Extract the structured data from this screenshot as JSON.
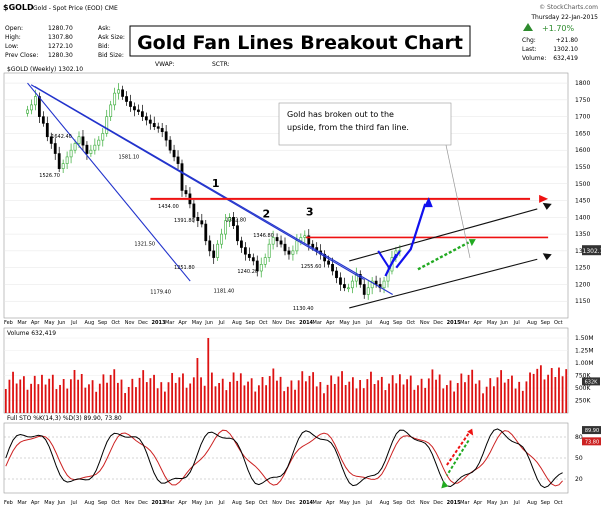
{
  "header": {
    "symbol": "$GOLD",
    "description": "Gold - Spot Price (EOD) CME",
    "watermark": "© StockCharts.com",
    "date": "Thursday 22-Jan-2015",
    "left_rows": [
      {
        "label": "Open:",
        "value": "1280.70"
      },
      {
        "label": "High:",
        "value": "1307.80"
      },
      {
        "label": "Low:",
        "value": "1272.10"
      },
      {
        "label": "Prev Close:",
        "value": "1280.30"
      }
    ],
    "mid_rows": [
      {
        "label": "Ask:",
        "value": ""
      },
      {
        "label": "Ask Size:",
        "value": ""
      },
      {
        "label": "Bid:",
        "value": ""
      },
      {
        "label": "Bid Size:",
        "value": ""
      }
    ],
    "vwap_label": "VWAP:",
    "sctr_label": "SCTR:",
    "change_pct": "+1.70%",
    "right_rows": [
      {
        "label": "Chg:",
        "value": "+21.80"
      },
      {
        "label": "Last:",
        "value": "1302.10"
      },
      {
        "label": "Volume:",
        "value": "632,419"
      }
    ]
  },
  "title": "Gold Fan Lines Breakout Chart",
  "annotation": "Gold has broken out to the upside, from the third fan line.",
  "price_panel": {
    "legend": "$GOLD (Weekly) 1302.10",
    "last_label": "1302.1",
    "y_ticks": [
      1150,
      1200,
      1250,
      1300,
      1350,
      1400,
      1450,
      1500,
      1550,
      1600,
      1650,
      1700,
      1750,
      1800
    ],
    "wave_labels": [
      "1",
      "2",
      "3"
    ],
    "price_labels": [
      {
        "text": "1526.70",
        "value": 1526.7,
        "t": 5
      },
      {
        "text": "1642.40",
        "value": 1642.4,
        "t": 8
      },
      {
        "text": "1581.10",
        "value": 1581.1,
        "t": 25
      },
      {
        "text": "1321.50",
        "value": 1321.5,
        "t": 29
      },
      {
        "text": "1434.00",
        "value": 1434,
        "t": 35
      },
      {
        "text": "1391.80",
        "value": 1391.8,
        "t": 39
      },
      {
        "text": "1251.80",
        "value": 1251.8,
        "t": 39
      },
      {
        "text": "1179.40",
        "value": 1179.4,
        "t": 33
      },
      {
        "text": "1181.40",
        "value": 1181.4,
        "t": 49
      },
      {
        "text": "1392.80",
        "value": 1392.8,
        "t": 52
      },
      {
        "text": "1240.20",
        "value": 1240.2,
        "t": 55
      },
      {
        "text": "1346.80",
        "value": 1346.8,
        "t": 59
      },
      {
        "text": "1130.40",
        "value": 1130.4,
        "t": 69
      },
      {
        "text": "1255.60",
        "value": 1255.6,
        "t": 71
      }
    ]
  },
  "volume_panel": {
    "legend": "Volume 632,419",
    "y_tick_labels": [
      "1.50M",
      "1.25M",
      "1.00M",
      "750K",
      "500K",
      "250K"
    ],
    "last_label": "632K"
  },
  "sto_panel": {
    "legend": "Full STO %K(14,3) %D(3) 89.90, 73.80",
    "y_ticks": [
      20,
      50,
      80
    ],
    "k_label": "89.90",
    "d_label": "73.80"
  },
  "x_axis": {
    "labels": [
      "Feb",
      "Mar",
      "Apr",
      "May",
      "Jun",
      "Jul",
      "Aug",
      "Sep",
      "Oct",
      "Nov",
      "Dec",
      "2013",
      "Mar",
      "Apr",
      "May",
      "Jun",
      "Jul",
      "Aug",
      "Sep",
      "Oct",
      "Nov",
      "Dec",
      "2014",
      "Mar",
      "Apr",
      "May",
      "Jun",
      "Jul",
      "Aug",
      "Sep",
      "Oct",
      "Nov",
      "Dec",
      "2015",
      "Mar",
      "Apr",
      "May",
      "Jun",
      "Jul",
      "Aug",
      "Sep",
      "Oct"
    ]
  },
  "colors": {
    "up": "#33aa33",
    "down": "#000000",
    "fan_line": "#2233cc",
    "resistance": "#ee1111",
    "channel": "#111111",
    "arrow_blue": "#1111ee",
    "arrow_green": "#22aa22",
    "volume_bar": "#dd1111",
    "sto_k": "#000000",
    "sto_d": "#cc2222",
    "header_up": "#2e8b2e"
  },
  "chart_data": {
    "type": "candlestick",
    "title": "Gold Fan Lines Breakout Chart",
    "interval": "weekly",
    "x_start": "Feb 2012",
    "x_end": "Jan 2015",
    "close_series": [
      1720,
      1735,
      1760,
      1700,
      1680,
      1640,
      1620,
      1590,
      1545,
      1560,
      1580,
      1600,
      1620,
      1640,
      1615,
      1590,
      1600,
      1615,
      1630,
      1650,
      1700,
      1735,
      1770,
      1780,
      1760,
      1745,
      1730,
      1720,
      1715,
      1700,
      1690,
      1680,
      1670,
      1665,
      1655,
      1630,
      1600,
      1580,
      1560,
      1480,
      1470,
      1440,
      1400,
      1390,
      1380,
      1330,
      1300,
      1280,
      1320,
      1350,
      1390,
      1400,
      1375,
      1330,
      1310,
      1290,
      1280,
      1270,
      1240,
      1260,
      1280,
      1320,
      1340,
      1330,
      1320,
      1300,
      1290,
      1300,
      1330,
      1340,
      1345,
      1320,
      1310,
      1300,
      1290,
      1270,
      1260,
      1240,
      1220,
      1200,
      1190,
      1190,
      1210,
      1230,
      1200,
      1170,
      1190,
      1210,
      1200,
      1190,
      1210,
      1240,
      1280,
      1300,
      1302
    ],
    "resistance_levels": [
      1455,
      1340
    ],
    "fan_line_count": 3,
    "volume_peak_approx": 1500000,
    "last_close": 1302.1,
    "sto_last": {
      "k": 89.9,
      "d": 73.8
    }
  }
}
